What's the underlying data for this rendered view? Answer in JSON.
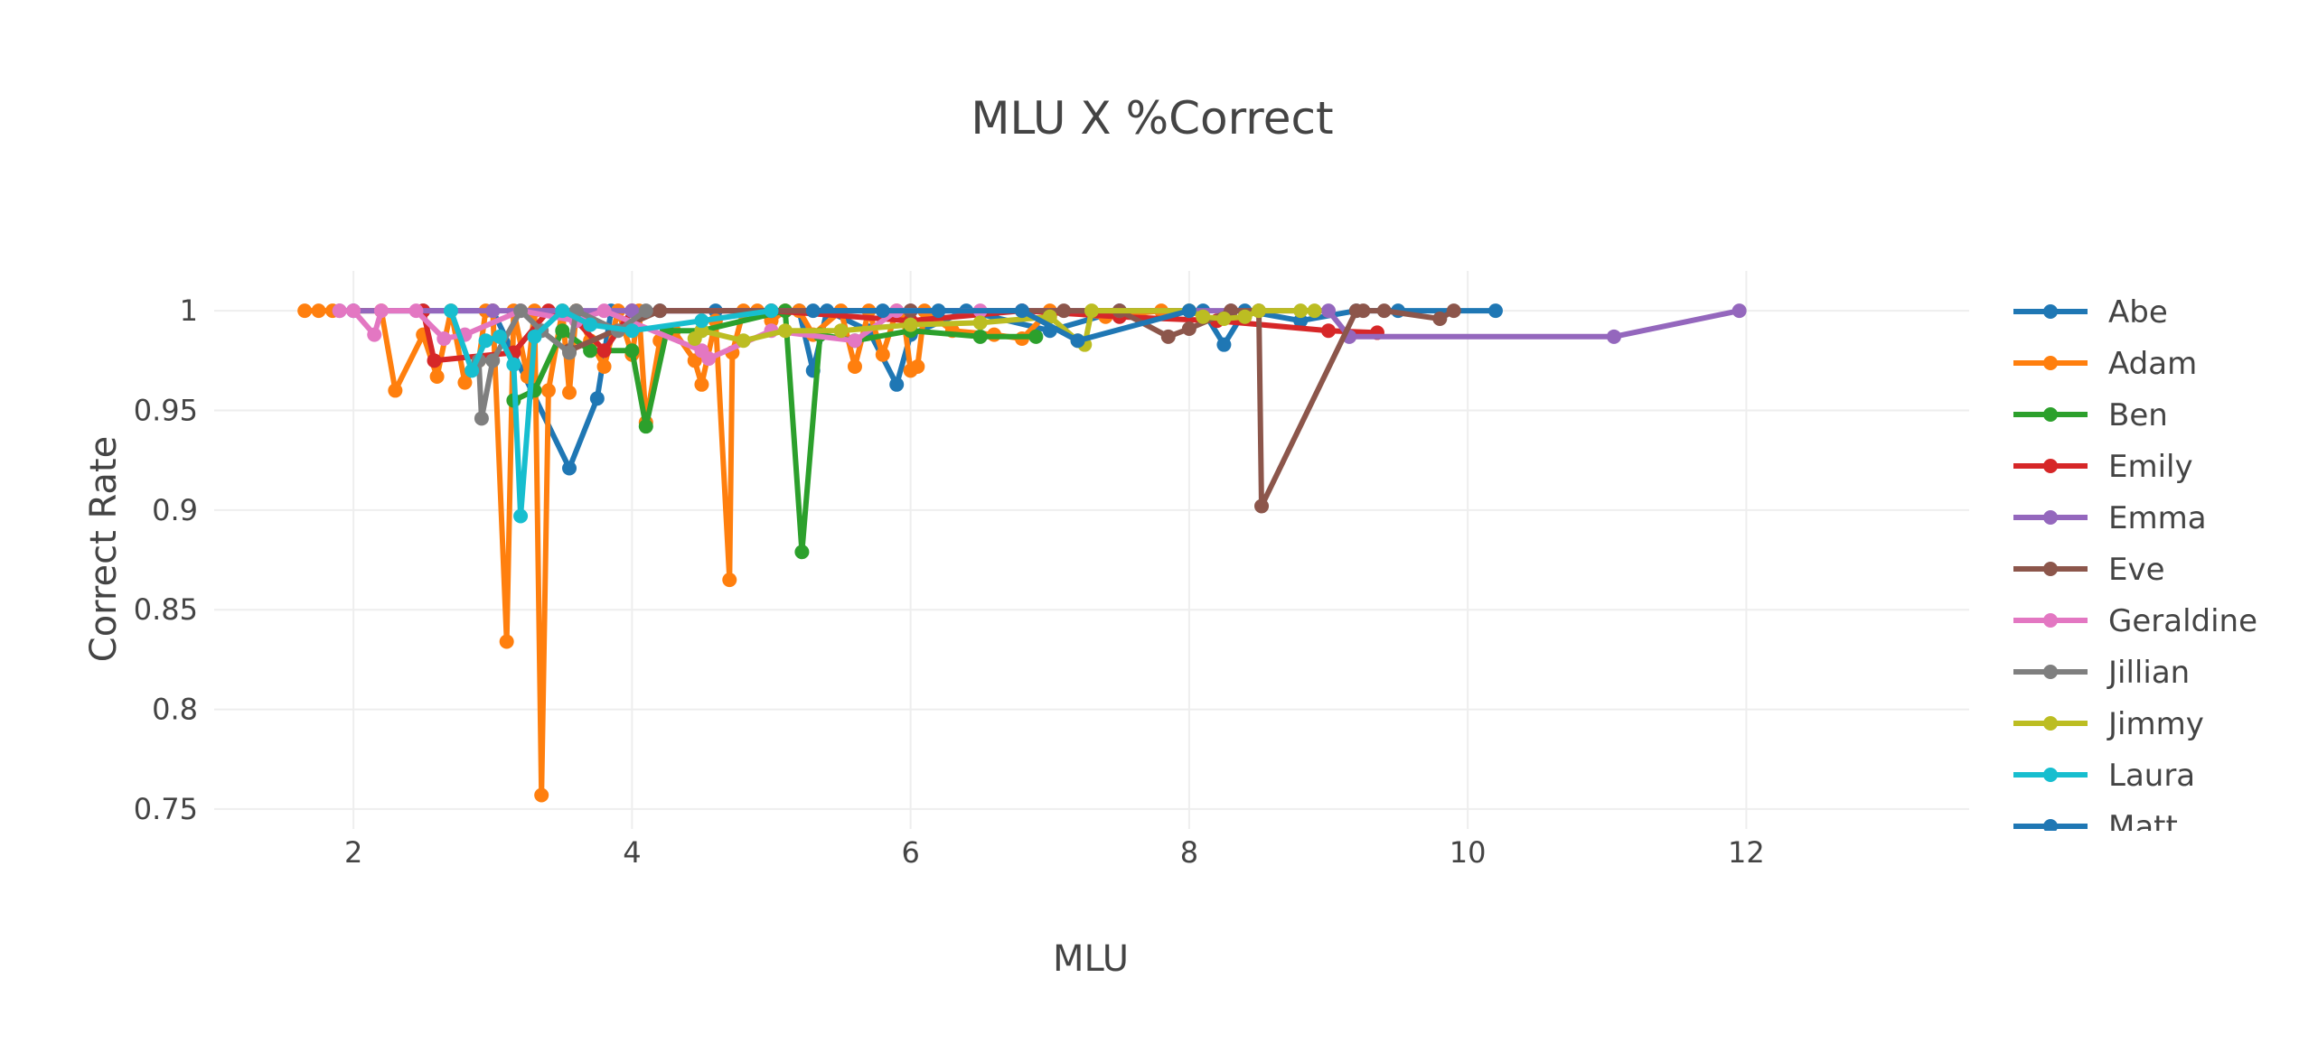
{
  "chart_data": {
    "type": "scatter",
    "mode": "lines+markers",
    "title": "MLU X %Correct",
    "xlabel": "MLU",
    "ylabel": "Correct Rate",
    "xlim": [
      1.0,
      13.6
    ],
    "ylim": [
      0.74,
      1.02
    ],
    "x_ticks": [
      2,
      4,
      6,
      8,
      10,
      12
    ],
    "x_tick_labels": [
      "2",
      "4",
      "6",
      "8",
      "10",
      "12"
    ],
    "y_ticks": [
      0.75,
      0.8,
      0.85,
      0.9,
      0.95,
      1
    ],
    "y_tick_labels": [
      "0.75",
      "0.8",
      "0.85",
      "0.9",
      "0.95",
      "1"
    ],
    "grid": true,
    "legend_position": "right",
    "series": [
      {
        "name": "Abe",
        "color": "#1f77b4",
        "x": [
          2.0,
          2.5,
          3.0,
          3.55,
          3.75,
          3.85,
          4.2,
          4.6,
          5.2,
          5.3,
          5.4,
          5.7,
          5.9,
          6.0,
          6.4,
          7.0,
          7.5,
          8.1,
          8.25,
          8.4,
          8.8,
          9.2,
          9.5,
          10.2
        ],
        "y": [
          1,
          1,
          1,
          0.921,
          0.956,
          1,
          1,
          1,
          1,
          0.97,
          1,
          0.99,
          0.963,
          0.988,
          1,
          0.99,
          1,
          1,
          0.983,
          1,
          0.995,
          1,
          1,
          1
        ]
      },
      {
        "name": "Adam",
        "color": "#ff7f0e",
        "x": [
          1.65,
          1.75,
          1.85,
          2.2,
          2.3,
          2.5,
          2.6,
          2.7,
          2.8,
          2.9,
          2.95,
          3.0,
          3.1,
          3.15,
          3.25,
          3.3,
          3.35,
          3.4,
          3.5,
          3.55,
          3.6,
          3.7,
          3.8,
          3.9,
          4.0,
          4.05,
          4.1,
          4.2,
          4.3,
          4.45,
          4.5,
          4.6,
          4.7,
          4.72,
          4.8,
          4.9,
          5.0,
          5.1,
          5.2,
          5.3,
          5.5,
          5.6,
          5.7,
          5.8,
          5.9,
          5.95,
          6.0,
          6.05,
          6.1,
          6.3,
          6.6,
          6.8,
          7.0,
          7.4,
          7.8
        ],
        "y": [
          1,
          1,
          1,
          1,
          0.96,
          0.988,
          0.967,
          1,
          0.964,
          0.975,
          1,
          1,
          0.834,
          1,
          0.967,
          1,
          0.757,
          0.96,
          1,
          0.959,
          1,
          0.985,
          0.972,
          1,
          0.978,
          1,
          0.944,
          0.985,
          0.99,
          0.975,
          0.963,
          0.995,
          0.865,
          0.979,
          1,
          1,
          0.995,
          1,
          1,
          0.988,
          1,
          0.972,
          1,
          0.978,
          1,
          0.997,
          0.97,
          0.972,
          1,
          0.99,
          0.988,
          0.986,
          1,
          0.997,
          1
        ]
      },
      {
        "name": "Ben",
        "color": "#2ca02c",
        "x": [
          3.15,
          3.3,
          3.5,
          3.7,
          4.0,
          4.1,
          4.25,
          4.5,
          5.1,
          5.22,
          5.35,
          5.6,
          6.0,
          6.5,
          6.9
        ],
        "y": [
          0.955,
          0.96,
          0.99,
          0.98,
          0.98,
          0.942,
          0.99,
          0.99,
          1,
          0.879,
          0.988,
          0.985,
          0.99,
          0.987,
          0.987
        ]
      },
      {
        "name": "Emily",
        "color": "#d62728",
        "x": [
          2.5,
          2.58,
          3.15,
          3.4,
          3.6,
          3.8,
          4.0,
          5.0,
          6.0,
          6.8,
          7.5,
          8.2,
          9.0,
          9.35
        ],
        "y": [
          1,
          0.975,
          0.979,
          1,
          0.995,
          0.98,
          1,
          1,
          0.995,
          1,
          0.997,
          0.995,
          0.99,
          0.989
        ]
      },
      {
        "name": "Emma",
        "color": "#9467bd",
        "x": [
          1.9,
          2.0,
          3.0,
          4.0,
          5.0,
          6.0,
          6.8,
          7.5,
          8.3,
          9.0,
          9.15,
          11.05,
          11.95
        ],
        "y": [
          1,
          1,
          1,
          1,
          1,
          1,
          1,
          1,
          1,
          1,
          0.987,
          0.987,
          1
        ]
      },
      {
        "name": "Eve",
        "color": "#8c564b",
        "x": [
          3.55,
          4.2,
          5.0,
          6.0,
          7.1,
          7.5,
          7.85,
          8.0,
          8.3,
          8.5,
          8.52,
          9.2,
          9.25,
          9.4,
          9.8,
          9.9
        ],
        "y": [
          0.98,
          1,
          1,
          1,
          1,
          1,
          0.987,
          0.991,
          1,
          1,
          0.902,
          1,
          1,
          1,
          0.996,
          1
        ]
      },
      {
        "name": "Geraldine",
        "color": "#e377c2",
        "x": [
          1.9,
          2.0,
          2.15,
          2.2,
          2.45,
          2.65,
          2.8,
          3.2,
          3.6,
          3.8,
          4.5,
          4.55,
          5.0,
          5.6,
          5.9,
          6.5
        ],
        "y": [
          1,
          1,
          0.988,
          1,
          1,
          0.986,
          0.988,
          1,
          0.995,
          1,
          0.98,
          0.976,
          0.99,
          0.985,
          1,
          1
        ]
      },
      {
        "name": "Jillian",
        "color": "#7f7f7f",
        "x": [
          2.9,
          2.92,
          3.0,
          3.2,
          3.35,
          3.55,
          3.6,
          3.9,
          4.1
        ],
        "y": [
          0.975,
          0.946,
          0.975,
          1,
          0.99,
          0.979,
          1,
          0.99,
          1
        ]
      },
      {
        "name": "Jimmy",
        "color": "#bcbd22",
        "x": [
          4.45,
          4.5,
          4.8,
          5.1,
          5.5,
          6.0,
          6.5,
          7.0,
          7.2,
          7.25,
          7.3,
          8.0,
          8.1,
          8.25,
          8.4,
          8.5,
          8.8,
          8.9
        ],
        "y": [
          0.986,
          0.99,
          0.985,
          0.99,
          0.99,
          0.993,
          0.994,
          0.997,
          0.985,
          0.983,
          1,
          1,
          0.997,
          0.996,
          0.997,
          1,
          1,
          1
        ]
      },
      {
        "name": "Laura",
        "color": "#17becf",
        "x": [
          2.7,
          2.85,
          2.95,
          3.05,
          3.15,
          3.2,
          3.3,
          3.5,
          3.7,
          4.0,
          4.5,
          5.0
        ],
        "y": [
          1,
          0.97,
          0.985,
          0.987,
          0.973,
          0.897,
          0.987,
          1,
          0.993,
          0.99,
          0.995,
          1
        ]
      },
      {
        "name": "Matt",
        "color": "#1f77b4",
        "x": [
          5.3,
          5.8,
          6.2,
          6.8,
          7.2,
          8.0
        ],
        "y": [
          1,
          1,
          1,
          1,
          0.985,
          1
        ]
      }
    ]
  }
}
